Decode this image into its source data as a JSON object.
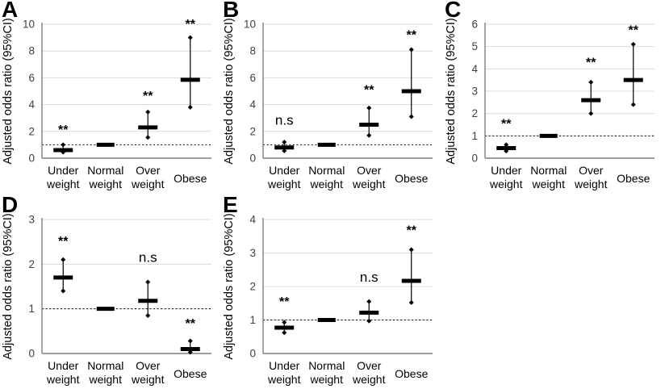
{
  "figure": {
    "y_axis_label": "Adjusted odds ratio (95%CI)",
    "category_lines": [
      [
        "Under",
        "weight"
      ],
      [
        "Normal",
        "weight"
      ],
      [
        "Over",
        "weight"
      ],
      [
        "Obese"
      ]
    ],
    "colors": {
      "marker": "#000000",
      "grid": "#d9d9d9",
      "axis": "#7f7f7f",
      "text": "#000000",
      "reference_line": "#000000",
      "background": "#ffffff"
    }
  },
  "chart_data": [
    {
      "type": "scatter",
      "panel_label": "A",
      "title": "",
      "xlabel": "",
      "ylabel": "Adjusted odds ratio (95%CI)",
      "categories": [
        "Under weight",
        "Normal weight",
        "Over weight",
        "Obese"
      ],
      "ylim": [
        0,
        10
      ],
      "ytick_step": 2,
      "grid": true,
      "legend": false,
      "reference_line": 1,
      "series": [
        {
          "category": "Under weight",
          "odds_ratio": 0.6,
          "ci_low": 0.45,
          "ci_high": 1.0,
          "significance": "**",
          "sig_label_y": 1.8
        },
        {
          "category": "Normal weight",
          "odds_ratio": 1.0,
          "ci_low": null,
          "ci_high": null,
          "significance": null,
          "sig_label_y": null
        },
        {
          "category": "Over weight",
          "odds_ratio": 2.3,
          "ci_low": 1.55,
          "ci_high": 3.45,
          "significance": "**",
          "sig_label_y": 4.35
        },
        {
          "category": "Obese",
          "odds_ratio": 5.85,
          "ci_low": 3.8,
          "ci_high": 9.0,
          "significance": "**",
          "sig_label_y": 9.7
        }
      ]
    },
    {
      "type": "scatter",
      "panel_label": "B",
      "title": "",
      "xlabel": "",
      "ylabel": "Adjusted odds ratio (95%CI)",
      "categories": [
        "Under weight",
        "Normal weight",
        "Over weight",
        "Obese"
      ],
      "ylim": [
        0,
        10
      ],
      "ytick_step": 2,
      "grid": true,
      "legend": false,
      "reference_line": 1,
      "series": [
        {
          "category": "Under weight",
          "odds_ratio": 0.8,
          "ci_low": 0.55,
          "ci_high": 1.2,
          "significance": "n.s",
          "sig_label_y": 2.5
        },
        {
          "category": "Normal weight",
          "odds_ratio": 1.0,
          "ci_low": null,
          "ci_high": null,
          "significance": null,
          "sig_label_y": null
        },
        {
          "category": "Over weight",
          "odds_ratio": 2.5,
          "ci_low": 1.7,
          "ci_high": 3.75,
          "significance": "**",
          "sig_label_y": 4.8
        },
        {
          "category": "Obese",
          "odds_ratio": 5.0,
          "ci_low": 3.1,
          "ci_high": 8.1,
          "significance": "**",
          "sig_label_y": 8.9
        }
      ]
    },
    {
      "type": "scatter",
      "panel_label": "C",
      "title": "",
      "xlabel": "",
      "ylabel": "Adjusted odds ratio (95%CI)",
      "categories": [
        "Under weight",
        "Normal weight",
        "Over weight",
        "Obese"
      ],
      "ylim": [
        0,
        6
      ],
      "ytick_step": 1,
      "grid": true,
      "legend": false,
      "reference_line": 1,
      "series": [
        {
          "category": "Under weight",
          "odds_ratio": 0.45,
          "ci_low": 0.32,
          "ci_high": 0.6,
          "significance": "**",
          "sig_label_y": 1.35
        },
        {
          "category": "Normal weight",
          "odds_ratio": 1.0,
          "ci_low": null,
          "ci_high": null,
          "significance": null,
          "sig_label_y": null
        },
        {
          "category": "Over weight",
          "odds_ratio": 2.6,
          "ci_low": 2.0,
          "ci_high": 3.4,
          "significance": "**",
          "sig_label_y": 4.1
        },
        {
          "category": "Obese",
          "odds_ratio": 3.5,
          "ci_low": 2.4,
          "ci_high": 5.1,
          "significance": "**",
          "sig_label_y": 5.55
        }
      ]
    },
    {
      "type": "scatter",
      "panel_label": "D",
      "title": "",
      "xlabel": "",
      "ylabel": "Adjusted odds ratio (95%CI)",
      "categories": [
        "Under weight",
        "Normal weight",
        "Over weight",
        "Obese"
      ],
      "ylim": [
        0,
        3
      ],
      "ytick_step": 1,
      "grid": true,
      "legend": false,
      "reference_line": 1,
      "series": [
        {
          "category": "Under weight",
          "odds_ratio": 1.7,
          "ci_low": 1.4,
          "ci_high": 2.1,
          "significance": "**",
          "sig_label_y": 2.42
        },
        {
          "category": "Normal weight",
          "odds_ratio": 1.0,
          "ci_low": null,
          "ci_high": null,
          "significance": null,
          "sig_label_y": null
        },
        {
          "category": "Over weight",
          "odds_ratio": 1.18,
          "ci_low": 0.85,
          "ci_high": 1.6,
          "significance": "n.s",
          "sig_label_y": 2.05
        },
        {
          "category": "Obese",
          "odds_ratio": 0.1,
          "ci_low": 0.03,
          "ci_high": 0.28,
          "significance": "**",
          "sig_label_y": 0.58
        }
      ]
    },
    {
      "type": "scatter",
      "panel_label": "E",
      "title": "",
      "xlabel": "",
      "ylabel": "Adjusted odds ratio (95%CI)",
      "categories": [
        "Under weight",
        "Normal weight",
        "Over weight",
        "Obese"
      ],
      "ylim": [
        0,
        4
      ],
      "ytick_step": 1,
      "grid": true,
      "legend": false,
      "reference_line": 1,
      "series": [
        {
          "category": "Under weight",
          "odds_ratio": 0.77,
          "ci_low": 0.62,
          "ci_high": 0.93,
          "significance": "**",
          "sig_label_y": 1.42
        },
        {
          "category": "Normal weight",
          "odds_ratio": 1.0,
          "ci_low": null,
          "ci_high": null,
          "significance": null,
          "sig_label_y": null
        },
        {
          "category": "Over weight",
          "odds_ratio": 1.22,
          "ci_low": 0.97,
          "ci_high": 1.55,
          "significance": "n.s",
          "sig_label_y": 2.15
        },
        {
          "category": "Obese",
          "odds_ratio": 2.17,
          "ci_low": 1.52,
          "ci_high": 3.1,
          "significance": "**",
          "sig_label_y": 3.55
        }
      ]
    }
  ]
}
